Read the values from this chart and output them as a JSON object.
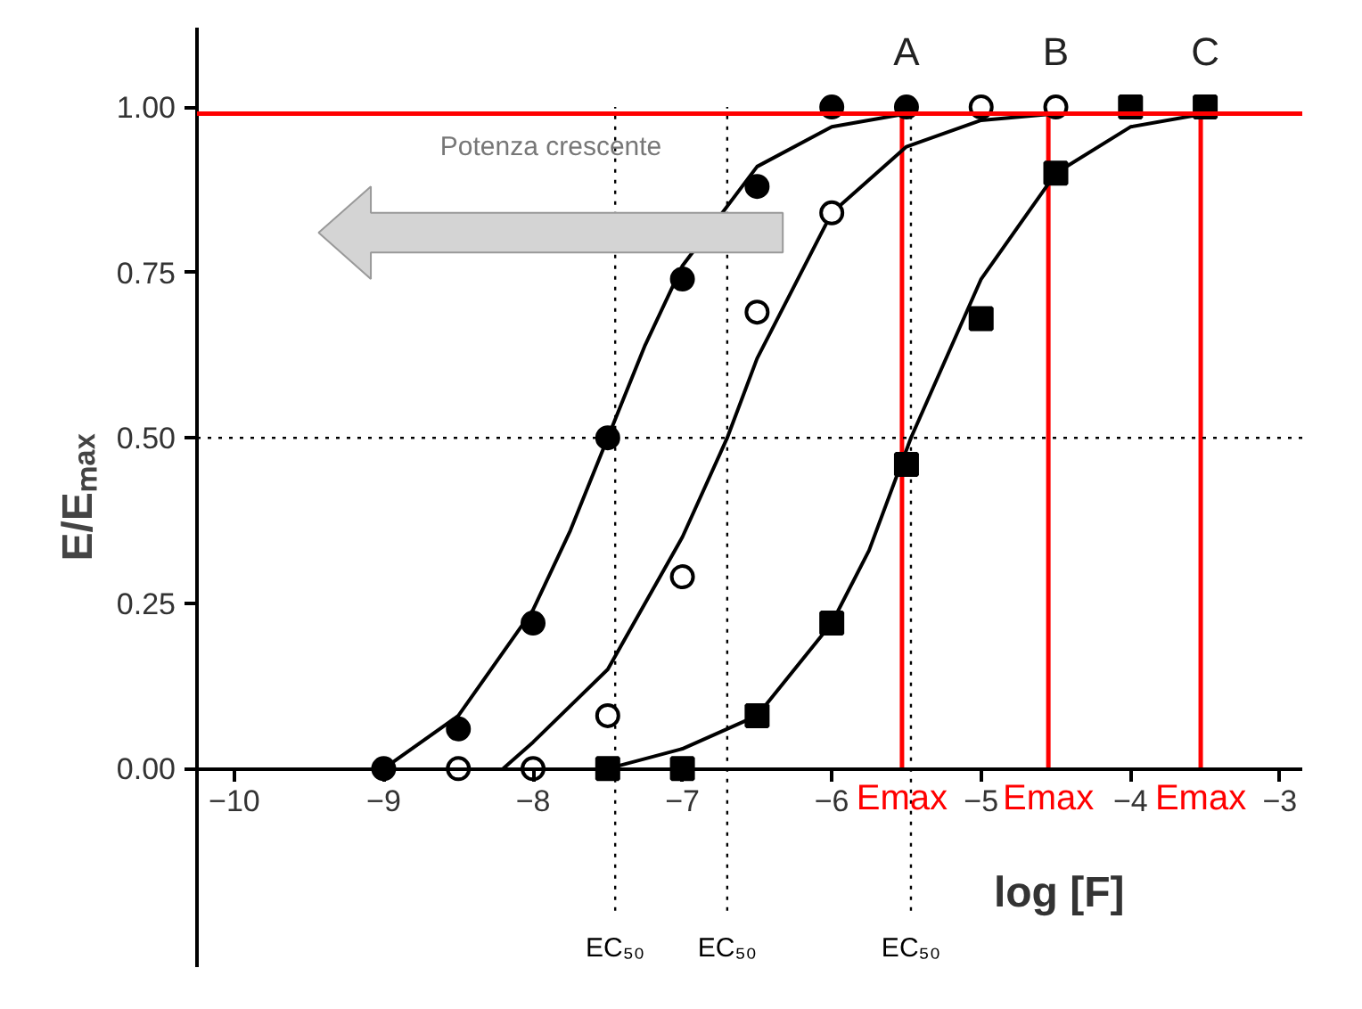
{
  "chart_data": {
    "type": "scatter",
    "xlabel": "log [F]",
    "ylabel": "E/Eₘₐₓ",
    "xlim": [
      -10.25,
      -2.85
    ],
    "ylim": [
      -0.3,
      1.12
    ],
    "xticks": [
      -10,
      -9,
      -8,
      -7,
      -6,
      -5,
      -4,
      -3
    ],
    "yticks": [
      {
        "value": 0,
        "label": "0.00"
      },
      {
        "value": 0.25,
        "label": "0.25"
      },
      {
        "value": 0.5,
        "label": "0.50"
      },
      {
        "value": 0.75,
        "label": "0.75"
      },
      {
        "value": 1,
        "label": "1.00"
      }
    ],
    "grid": false,
    "series": [
      {
        "marker": "circle",
        "color": "#000000",
        "x": [
          -9,
          -8.5,
          -8,
          -7.5,
          -7,
          -6.5,
          -6,
          -5.5
        ],
        "values": [
          0,
          0.06,
          0.22,
          0.5,
          0.74,
          0.88,
          1.0,
          1.0
        ]
      },
      {
        "marker": "circle",
        "color": "#ffffff",
        "x": [
          -8.5,
          -8,
          -7.5,
          -7,
          -6.5,
          -6,
          -5,
          -4.5
        ],
        "values": [
          0,
          0,
          0.08,
          0.29,
          0.69,
          0.84,
          1.0,
          1.0
        ]
      },
      {
        "marker": "square",
        "color": "#000000",
        "x": [
          -7.5,
          -7,
          -6.5,
          -6,
          -5.5,
          -5,
          -4.5,
          -4,
          -3.5
        ],
        "values": [
          0,
          0,
          0.08,
          0.22,
          0.46,
          0.68,
          0.9,
          1.0,
          1.0
        ]
      },
      {
        "type": "line",
        "name": "A",
        "line_style": "solid",
        "color": "#000000",
        "x": [
          -9,
          -8.5,
          -8,
          -7.75,
          -7.5,
          -7.25,
          -7,
          -6.5,
          -6,
          -5.5
        ],
        "values": [
          0.0,
          0.08,
          0.24,
          0.36,
          0.5,
          0.64,
          0.76,
          0.91,
          0.97,
          0.99
        ]
      },
      {
        "type": "line",
        "name": "B",
        "line_style": "solid",
        "color": "#000000",
        "x": [
          -8.2,
          -8,
          -7.5,
          -7,
          -6.7,
          -6.5,
          -6,
          -5.5,
          -5,
          -4.5
        ],
        "values": [
          0.0,
          0.04,
          0.15,
          0.35,
          0.5,
          0.62,
          0.84,
          0.94,
          0.98,
          0.99
        ]
      },
      {
        "type": "line",
        "name": "C",
        "line_style": "solid",
        "color": "#000000",
        "x": [
          -7.5,
          -7,
          -6.5,
          -6,
          -5.75,
          -5.47,
          -5,
          -4.5,
          -4,
          -3.5
        ],
        "values": [
          0.0,
          0.03,
          0.08,
          0.22,
          0.33,
          0.5,
          0.74,
          0.9,
          0.97,
          0.99
        ]
      }
    ],
    "ref_lines": [
      {
        "axis": "y",
        "value": 0.99,
        "color": "#ff0000",
        "line_style": "solid"
      },
      {
        "axis": "y",
        "value": 0.5,
        "color": "#000000",
        "line_style": "dotted"
      },
      {
        "axis": "x",
        "value": -7.45,
        "label": "EC₅₀",
        "color": "#000000",
        "line_style": "dotted"
      },
      {
        "axis": "x",
        "value": -6.7,
        "label": "EC₅₀",
        "color": "#000000",
        "line_style": "dotted"
      },
      {
        "axis": "x",
        "value": -5.47,
        "label": "EC₅₀",
        "color": "#000000",
        "line_style": "dotted"
      },
      {
        "axis": "x",
        "value": -5.53,
        "label": "Emax",
        "color": "#ff0000",
        "line_style": "solid"
      },
      {
        "axis": "x",
        "value": -4.55,
        "label": "Emax",
        "color": "#ff0000",
        "line_style": "solid"
      },
      {
        "axis": "x",
        "value": -3.53,
        "label": "Emax",
        "color": "#ff0000",
        "line_style": "solid"
      }
    ],
    "annotations": [
      "Potenza crescente"
    ]
  }
}
